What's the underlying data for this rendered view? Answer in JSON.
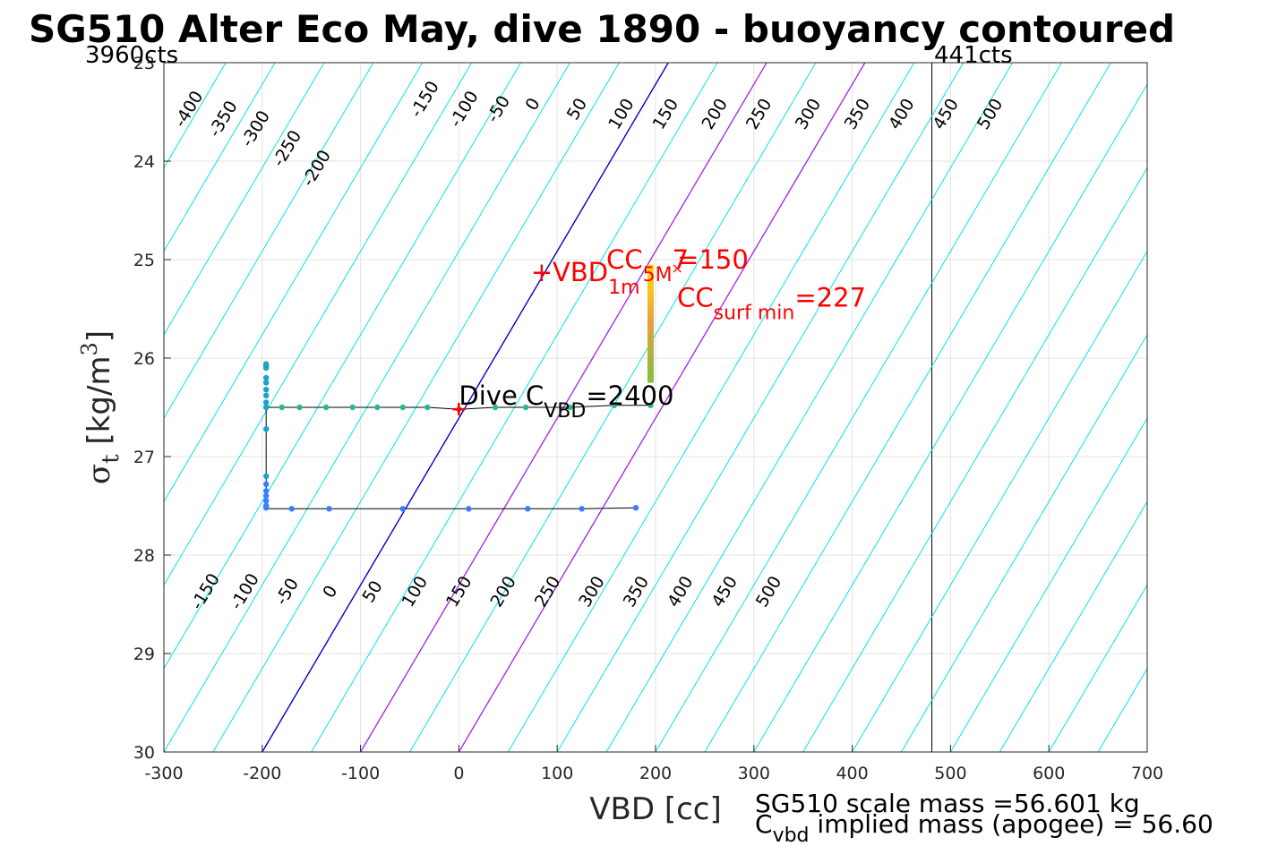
{
  "chart_data": {
    "type": "scatter",
    "title": "SG510 Alter Eco May, dive 1890 - buoyancy contoured",
    "xlabel": "VBD [cc]",
    "ylabel": "σ t [kg/m 3 ]",
    "xlim": [
      -300,
      700
    ],
    "ylim": [
      30,
      23
    ],
    "xticks": [
      -300,
      -200,
      -100,
      0,
      100,
      200,
      300,
      400,
      500,
      600,
      700
    ],
    "yticks": [
      23,
      24,
      25,
      26,
      27,
      28,
      29,
      30
    ],
    "grid": true,
    "left_limit_label": "3960cts",
    "right_limit_label": "441cts",
    "right_limit_x": 481,
    "footer_line1": "SG510 scale mass =56.601 kg",
    "footer_line2_prefix": "C",
    "footer_line2_sub": "vbd",
    "footer_line2_rest": " implied mass (apogee) = 56.60",
    "contours": {
      "description_free": true,
      "levels": [
        -400,
        -350,
        -300,
        -250,
        -200,
        -150,
        -100,
        -50,
        0,
        50,
        100,
        150,
        200,
        250,
        300,
        350,
        400,
        450,
        500
      ],
      "zero_color": "#0000cc",
      "highlight_levels": [
        100,
        200
      ],
      "highlight_color": "#a020f0",
      "other_color": "#00e6e6",
      "anchor_x_at_sigma30": {
        "-400": -400,
        "-350": -350,
        "-300": -300,
        "-250": -250,
        "-200": -200,
        "-150": -150,
        "-100": -100,
        "-50": -50,
        "0": -200,
        "50": -150,
        "100": -100,
        "150": -50,
        "200": 0,
        "250": 50,
        "300": 100,
        "350": 150,
        "400": 200,
        "450": 250,
        "500": 300
      },
      "slope_cc_per_sigma": 59
    },
    "top_labels": [
      "-400",
      "-350",
      "-300",
      "-250",
      "-200",
      "-150",
      "-100",
      "-50",
      "0",
      "50",
      "100",
      "150",
      "200",
      "250",
      "300",
      "350",
      "400",
      "450",
      "500"
    ],
    "bottom_labels": [
      "-150",
      "-100",
      "-50",
      "0",
      "50",
      "100",
      "150",
      "200",
      "250",
      "300",
      "350",
      "400",
      "450",
      "500"
    ],
    "series": [
      {
        "color": "#3a7bff",
        "x": [
          180,
          125,
          70,
          10,
          -57,
          -132,
          -170,
          -196,
          -196,
          -196,
          -196,
          -196,
          -196
        ],
        "y": [
          27.52,
          27.53,
          27.53,
          27.53,
          27.53,
          27.53,
          27.53,
          27.52,
          27.5,
          27.45,
          27.4,
          27.35,
          27.28
        ]
      },
      {
        "color": "#1aa3c8",
        "x": [
          -196,
          -196,
          -196,
          -196,
          -196,
          -196,
          -196,
          -196,
          -196,
          -196,
          -196
        ],
        "y": [
          27.2,
          26.72,
          26.5,
          26.45,
          26.38,
          26.32,
          26.25,
          26.2,
          26.1,
          26.08,
          26.06
        ]
      },
      {
        "color": "#2ab98f",
        "x": [
          -180,
          -162,
          -135,
          -108,
          -83,
          -57,
          -32,
          0,
          37,
          68,
          113,
          158,
          195
        ],
        "y": [
          26.5,
          26.5,
          26.5,
          26.5,
          26.5,
          26.5,
          26.5,
          26.52,
          26.5,
          26.5,
          26.5,
          26.48,
          26.48
        ]
      }
    ],
    "surface_bar": {
      "x": 195,
      "y_from": 26.25,
      "y_to": 25.05,
      "color_top": "#ffe000",
      "color_mid": "#e6a040",
      "color_bottom": "#80c040"
    },
    "annotations": {
      "vbd_label": "+VBD",
      "vbd_sub": "1m",
      "vbd_marker_x": 75,
      "vbd_y": 25.1,
      "cc_label": "CC",
      "cc_sub": "5M",
      "cc_value": "=150",
      "cc_overlap": "7",
      "cc_marker_x": 225,
      "surf_label": "CC",
      "surf_sub": "surf min",
      "surf_value": "=227",
      "dive_label": "Dive C",
      "dive_sub": "VBD",
      "dive_value": "=2400",
      "dive_marker_x": 0,
      "dive_marker_y": 26.52,
      "annotation_color": "#ff0000"
    }
  }
}
